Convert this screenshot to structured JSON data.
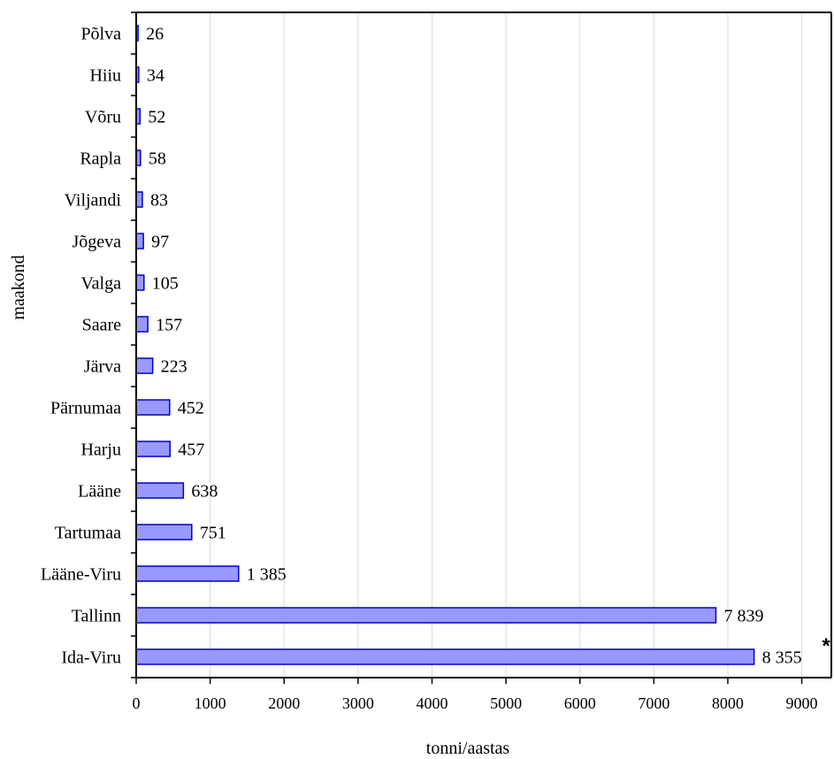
{
  "chart_data": {
    "type": "bar",
    "orientation": "horizontal",
    "categories": [
      "Põlva",
      "Hiiu",
      "Võru",
      "Rapla",
      "Viljandi",
      "Jõgeva",
      "Valga",
      "Saare",
      "Järva",
      "Pärnumaa",
      "Harju",
      "Lääne",
      "Tartumaa",
      "Lääne-Viru",
      "Tallinn",
      "Ida-Viru"
    ],
    "values": [
      26,
      34,
      52,
      58,
      83,
      97,
      105,
      157,
      223,
      452,
      457,
      638,
      751,
      1385,
      7839,
      8355
    ],
    "value_labels": [
      "26",
      "34",
      "52",
      "58",
      "83",
      "97",
      "105",
      "157",
      "223",
      "452",
      "457",
      "638",
      "751",
      "1 385",
      "7 839",
      "8 355"
    ],
    "xlabel": "tonni/aastas",
    "ylabel": "maakond",
    "xlim": [
      0,
      9400
    ],
    "xticks": [
      0,
      1000,
      2000,
      3000,
      4000,
      5000,
      6000,
      7000,
      8000,
      9000
    ],
    "xtick_labels": [
      "0",
      "1000",
      "2000",
      "3000",
      "4000",
      "5000",
      "6000",
      "7000",
      "8000",
      "9000"
    ],
    "grid": "vertical",
    "annotation": "*",
    "colors": {
      "bar_fill": "#9999ff",
      "bar_stroke": "#0000cc",
      "grid": "#d9d9d9",
      "axis": "#000000"
    }
  }
}
